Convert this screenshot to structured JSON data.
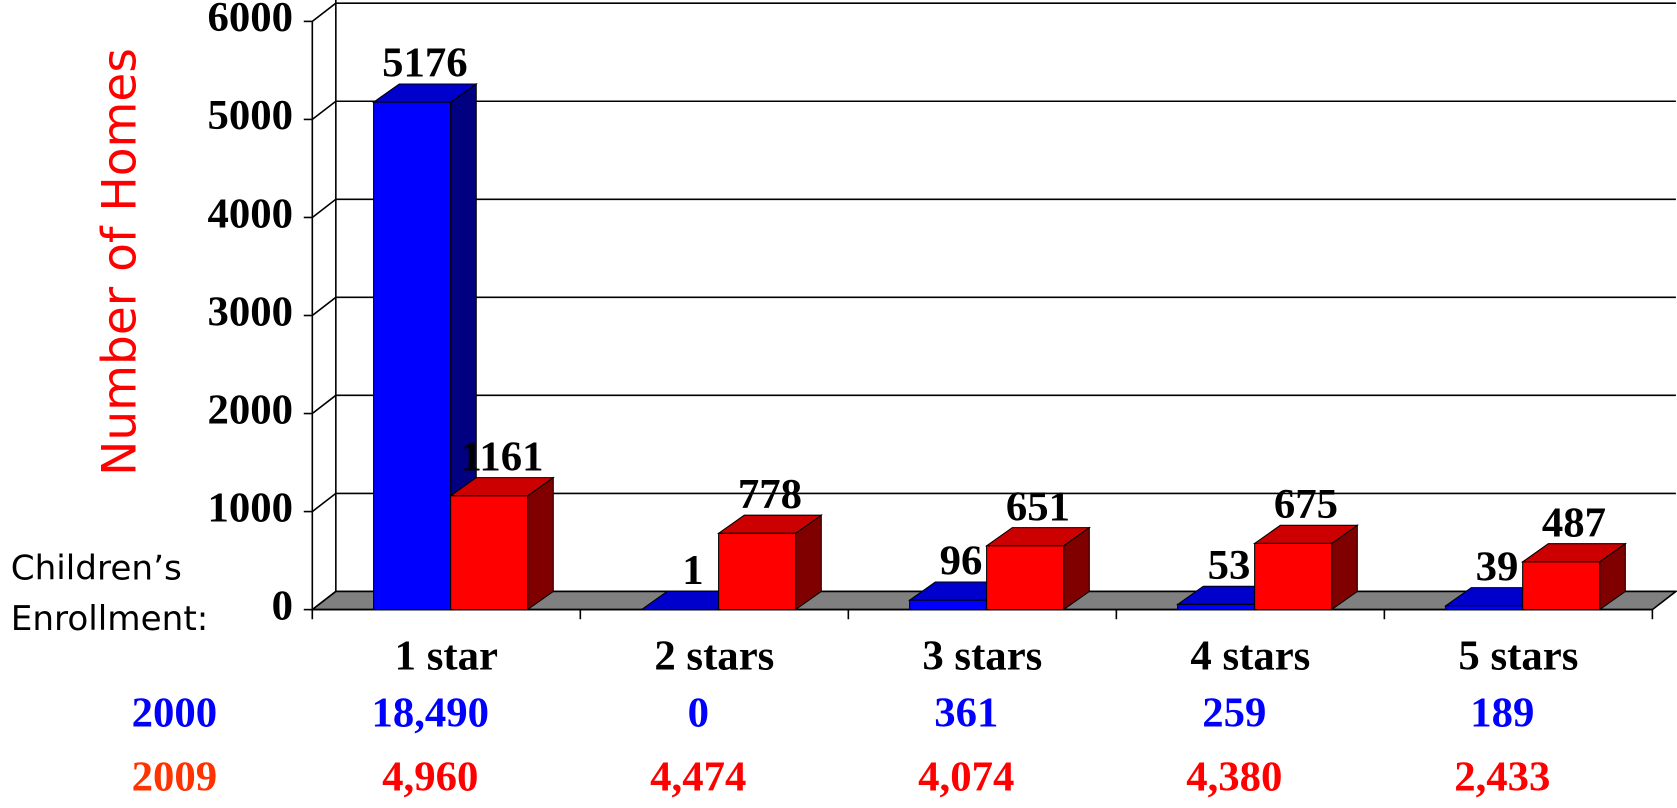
{
  "chart_data": {
    "type": "bar3d",
    "y_label": "Number of Homes",
    "categories": [
      "1 star",
      "2 stars",
      "3 stars",
      "4 stars",
      "5 stars"
    ],
    "series": [
      {
        "name": "2000",
        "color": "#0000ff",
        "values": [
          5176,
          1,
          96,
          53,
          39
        ]
      },
      {
        "name": "2009",
        "color": "#ff0000",
        "values": [
          1161,
          778,
          651,
          675,
          487
        ]
      }
    ],
    "ylim": [
      0,
      6000
    ],
    "yticks": [
      0,
      1000,
      2000,
      3000,
      4000,
      5000,
      6000
    ],
    "grid": true,
    "enrollment": {
      "label_lines": [
        "Children’s",
        "Enrollment:"
      ],
      "rows": [
        [
          "18,490",
          "0",
          "361",
          "259",
          "189"
        ],
        [
          "4,960",
          "4,474",
          "4,074",
          "4,380",
          "2,433"
        ]
      ],
      "name_colors": [
        "#0000ff",
        "#ff3300"
      ],
      "value_colors": [
        "#0000ff",
        "#ff0000"
      ]
    }
  }
}
